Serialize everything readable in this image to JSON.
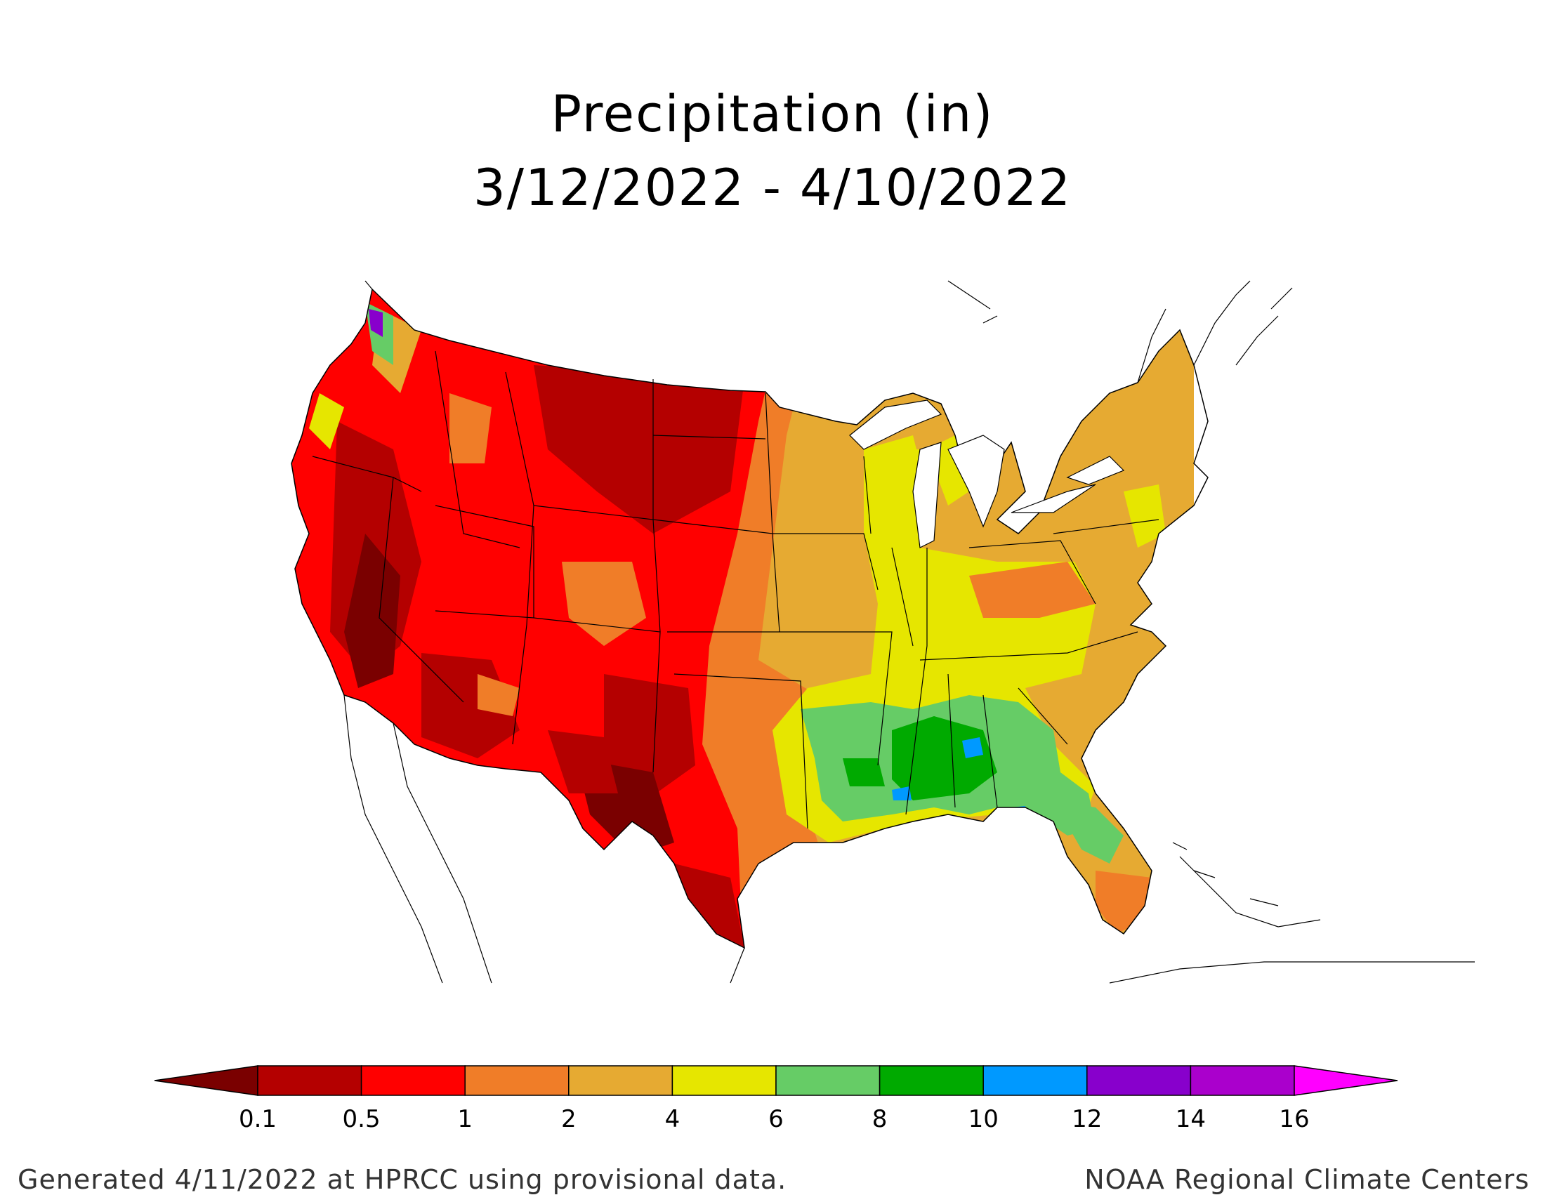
{
  "title": {
    "line1": "Precipitation (in)",
    "line2": "3/12/2022 - 4/10/2022"
  },
  "map": {
    "region": "Contiguous United States",
    "dominant_categories": {
      "southwest_and_plains": "< 0.1 to 1",
      "midwest_and_northeast": "2 to 4",
      "ohio_valley_and_southeast": "4 to 6",
      "gulf_coast_south": "6 to 10"
    }
  },
  "legend": {
    "bins": [
      {
        "color": "#7a0000"
      },
      {
        "color": "#b40000"
      },
      {
        "color": "#ff0000"
      },
      {
        "color": "#f07d28"
      },
      {
        "color": "#e6aa32"
      },
      {
        "color": "#e6e600"
      },
      {
        "color": "#66cc66"
      },
      {
        "color": "#00aa00"
      },
      {
        "color": "#0099ff"
      },
      {
        "color": "#8800cc"
      },
      {
        "color": "#aa00cc"
      },
      {
        "color": "#ff00ff"
      }
    ],
    "ticks": [
      "0.1",
      "0.5",
      "1",
      "2",
      "4",
      "6",
      "8",
      "10",
      "12",
      "14",
      "16"
    ]
  },
  "footer": {
    "left": "Generated 4/11/2022 at HPRCC using provisional data.",
    "right": "NOAA Regional Climate Centers"
  }
}
